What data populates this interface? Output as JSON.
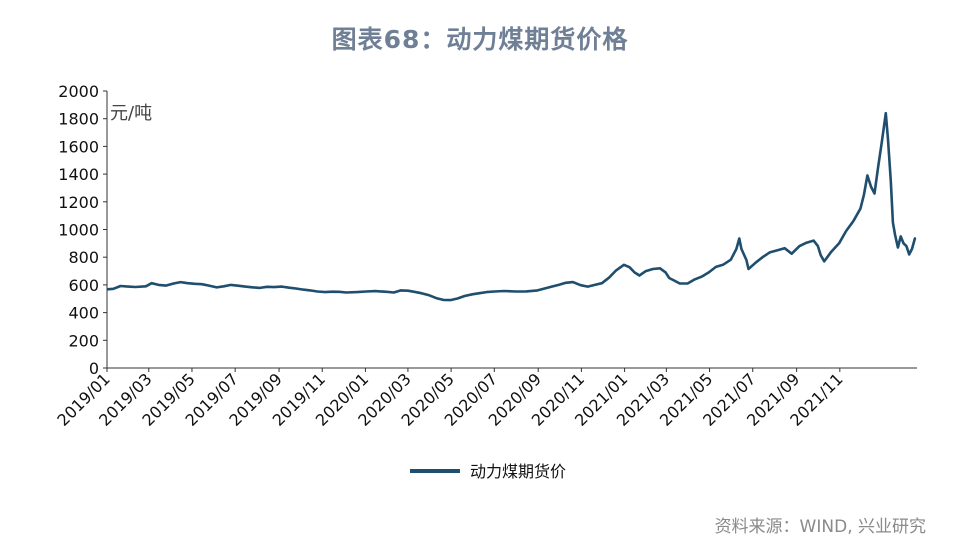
{
  "chart_data": {
    "type": "line",
    "title": "图表68：动力煤期货价格",
    "unit_label": "元/吨",
    "series": [
      {
        "name": "动力煤期货价",
        "color": "#1f4e6e",
        "points": [
          [
            "2019-01-02",
            568
          ],
          [
            "2019-01-10",
            572
          ],
          [
            "2019-01-20",
            592
          ],
          [
            "2019-01-31",
            588
          ],
          [
            "2019-02-10",
            585
          ],
          [
            "2019-02-25",
            590
          ],
          [
            "2019-03-05",
            612
          ],
          [
            "2019-03-15",
            600
          ],
          [
            "2019-03-25",
            595
          ],
          [
            "2019-04-05",
            610
          ],
          [
            "2019-04-15",
            620
          ],
          [
            "2019-04-25",
            612
          ],
          [
            "2019-05-05",
            608
          ],
          [
            "2019-05-15",
            605
          ],
          [
            "2019-05-25",
            595
          ],
          [
            "2019-06-05",
            582
          ],
          [
            "2019-06-15",
            590
          ],
          [
            "2019-06-25",
            600
          ],
          [
            "2019-07-05",
            594
          ],
          [
            "2019-07-15",
            588
          ],
          [
            "2019-07-25",
            583
          ],
          [
            "2019-08-05",
            578
          ],
          [
            "2019-08-15",
            586
          ],
          [
            "2019-08-25",
            584
          ],
          [
            "2019-09-05",
            588
          ],
          [
            "2019-09-15",
            580
          ],
          [
            "2019-09-25",
            574
          ],
          [
            "2019-10-05",
            566
          ],
          [
            "2019-10-15",
            560
          ],
          [
            "2019-10-25",
            552
          ],
          [
            "2019-11-05",
            548
          ],
          [
            "2019-11-15",
            551
          ],
          [
            "2019-11-25",
            550
          ],
          [
            "2019-12-05",
            545
          ],
          [
            "2019-12-20",
            548
          ],
          [
            "2020-01-02",
            552
          ],
          [
            "2020-01-15",
            555
          ],
          [
            "2020-01-31",
            550
          ],
          [
            "2020-02-10",
            545
          ],
          [
            "2020-02-20",
            560
          ],
          [
            "2020-03-01",
            558
          ],
          [
            "2020-03-10",
            550
          ],
          [
            "2020-03-20",
            540
          ],
          [
            "2020-03-31",
            525
          ],
          [
            "2020-04-10",
            505
          ],
          [
            "2020-04-20",
            492
          ],
          [
            "2020-04-30",
            490
          ],
          [
            "2020-05-10",
            502
          ],
          [
            "2020-05-20",
            520
          ],
          [
            "2020-05-31",
            532
          ],
          [
            "2020-06-10",
            540
          ],
          [
            "2020-06-20",
            548
          ],
          [
            "2020-07-01",
            552
          ],
          [
            "2020-07-15",
            556
          ],
          [
            "2020-07-31",
            552
          ],
          [
            "2020-08-15",
            553
          ],
          [
            "2020-08-31",
            560
          ],
          [
            "2020-09-10",
            574
          ],
          [
            "2020-09-20",
            588
          ],
          [
            "2020-09-30",
            600
          ],
          [
            "2020-10-10",
            615
          ],
          [
            "2020-10-20",
            620
          ],
          [
            "2020-10-31",
            598
          ],
          [
            "2020-11-10",
            588
          ],
          [
            "2020-11-20",
            600
          ],
          [
            "2020-11-30",
            612
          ],
          [
            "2020-12-10",
            652
          ],
          [
            "2020-12-20",
            705
          ],
          [
            "2020-12-31",
            745
          ],
          [
            "2021-01-08",
            728
          ],
          [
            "2021-01-15",
            690
          ],
          [
            "2021-01-22",
            668
          ],
          [
            "2021-01-31",
            700
          ],
          [
            "2021-02-10",
            715
          ],
          [
            "2021-02-20",
            720
          ],
          [
            "2021-02-28",
            690
          ],
          [
            "2021-03-05",
            650
          ],
          [
            "2021-03-12",
            632
          ],
          [
            "2021-03-20",
            610
          ],
          [
            "2021-03-31",
            610
          ],
          [
            "2021-04-10",
            640
          ],
          [
            "2021-04-20",
            660
          ],
          [
            "2021-04-30",
            690
          ],
          [
            "2021-05-10",
            730
          ],
          [
            "2021-05-20",
            745
          ],
          [
            "2021-05-31",
            782
          ],
          [
            "2021-06-08",
            860
          ],
          [
            "2021-06-12",
            935
          ],
          [
            "2021-06-15",
            860
          ],
          [
            "2021-06-22",
            780
          ],
          [
            "2021-06-25",
            715
          ],
          [
            "2021-07-05",
            760
          ],
          [
            "2021-07-15",
            800
          ],
          [
            "2021-07-25",
            835
          ],
          [
            "2021-08-05",
            850
          ],
          [
            "2021-08-15",
            865
          ],
          [
            "2021-08-25",
            825
          ],
          [
            "2021-09-05",
            880
          ],
          [
            "2021-09-15",
            905
          ],
          [
            "2021-09-25",
            920
          ],
          [
            "2021-10-01",
            880
          ],
          [
            "2021-10-05",
            815
          ],
          [
            "2021-10-10",
            770
          ],
          [
            "2021-10-20",
            840
          ],
          [
            "2021-10-31",
            900
          ],
          [
            "2021-11-10",
            990
          ],
          [
            "2021-11-20",
            1060
          ],
          [
            "2021-11-30",
            1150
          ],
          [
            "2021-12-05",
            1250
          ],
          [
            "2021-12-10",
            1390
          ],
          [
            "2021-12-15",
            1310
          ],
          [
            "2021-12-20",
            1260
          ],
          [
            "2021-12-25",
            1450
          ],
          [
            "2021-12-30",
            1620
          ],
          [
            "2022-01-05",
            1840
          ],
          [
            "2022-01-08",
            1650
          ],
          [
            "2022-01-12",
            1350
          ],
          [
            "2022-01-15",
            1050
          ],
          [
            "2022-01-18",
            960
          ],
          [
            "2022-01-22",
            870
          ],
          [
            "2022-01-26",
            950
          ],
          [
            "2022-01-30",
            900
          ],
          [
            "2022-02-03",
            880
          ],
          [
            "2022-02-07",
            820
          ],
          [
            "2022-02-11",
            860
          ],
          [
            "2022-02-15",
            935
          ]
        ]
      }
    ],
    "x_tick_labels": [
      "2019/01",
      "2019/03",
      "2019/05",
      "2019/07",
      "2019/09",
      "2019/11",
      "2020/01",
      "2020/03",
      "2020/05",
      "2020/07",
      "2020/09",
      "2020/11",
      "2021/01",
      "2021/03",
      "2021/05",
      "2021/07",
      "2021/09",
      "2021/11"
    ],
    "x_tick_dates": [
      "2019-01-01",
      "2019-03-01",
      "2019-05-01",
      "2019-07-01",
      "2019-09-01",
      "2019-11-01",
      "2020-01-01",
      "2020-03-01",
      "2020-05-01",
      "2020-07-01",
      "2020-09-01",
      "2020-11-01",
      "2021-01-01",
      "2021-03-01",
      "2021-05-01",
      "2021-07-01",
      "2021-09-01",
      "2021-11-01"
    ],
    "y_ticks": [
      0,
      200,
      400,
      600,
      800,
      1000,
      1200,
      1400,
      1600,
      1800,
      2000
    ],
    "ylim": [
      0,
      2000
    ],
    "legend": {
      "placement": "bottom-center"
    },
    "grid": false
  },
  "source_text": "资料来源：WIND, 兴业研究"
}
